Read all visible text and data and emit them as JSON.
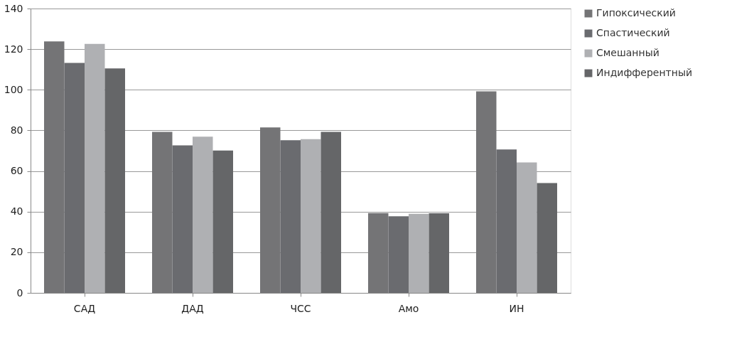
{
  "chart_data": {
    "type": "bar",
    "categories": [
      "САД",
      "ДАД",
      "ЧСС",
      "Амо",
      "ИН"
    ],
    "series": [
      {
        "name": "Гипоксический",
        "color": "#747476",
        "values": [
          123.8,
          79.3,
          81.5,
          39.3,
          99.2
        ]
      },
      {
        "name": "Спастический",
        "color": "#6a6b6f",
        "values": [
          113.2,
          72.6,
          75.2,
          37.7,
          70.6
        ]
      },
      {
        "name": "Смешанный",
        "color": "#afb0b3",
        "values": [
          122.6,
          76.9,
          75.7,
          38.9,
          64.2
        ]
      },
      {
        "name": "Индифферентный",
        "color": "#656668",
        "values": [
          110.5,
          70.1,
          79.3,
          39.2,
          54.1
        ]
      }
    ],
    "ylim": [
      0,
      140
    ],
    "yticks": [
      0,
      20,
      40,
      60,
      80,
      100,
      120,
      140
    ],
    "grid": "y",
    "legend": "right"
  }
}
